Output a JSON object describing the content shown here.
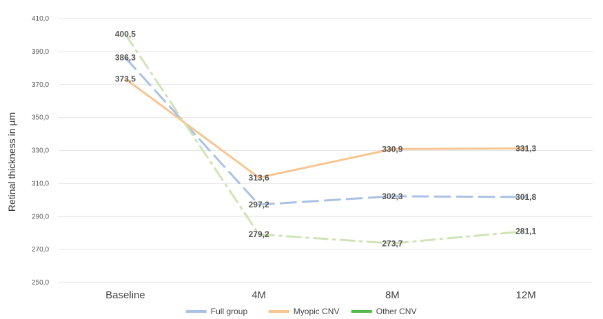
{
  "chart_data": {
    "type": "line",
    "categories": [
      "Baseline",
      "4M",
      "8M",
      "12M"
    ],
    "ylabel": "Retinal thickness in µm",
    "ylim": [
      250,
      410
    ],
    "yticks": [
      "410,0",
      "390,0",
      "370,0",
      "350,0",
      "330,0",
      "310,0",
      "290,0",
      "270,0",
      "250,0"
    ],
    "grid": true,
    "legend_position": "bottom",
    "series": [
      {
        "name": "Full group",
        "values": [
          386.3,
          297.2,
          302.3,
          301.8
        ],
        "labels": [
          "386,3",
          "297,2",
          "302,3",
          "301,8"
        ],
        "color": "#a9c1e4",
        "style": "dashed"
      },
      {
        "name": "Myopic CNV",
        "values": [
          373.5,
          313.6,
          330.9,
          331.3
        ],
        "labels": [
          "373,5",
          "313,6",
          "330,9",
          "331,3"
        ],
        "color": "#f6c592",
        "style": "solid"
      },
      {
        "name": "Other CNV",
        "values": [
          400.5,
          279.2,
          273.7,
          281.1
        ],
        "labels": [
          "400,5",
          "279,2",
          "273,7",
          "281,1"
        ],
        "color": "#cfe4b6",
        "style": "dash-dot"
      }
    ],
    "legend_swatch_colors": [
      "#a9c1e4",
      "#f6c592",
      "#55b84a"
    ]
  }
}
